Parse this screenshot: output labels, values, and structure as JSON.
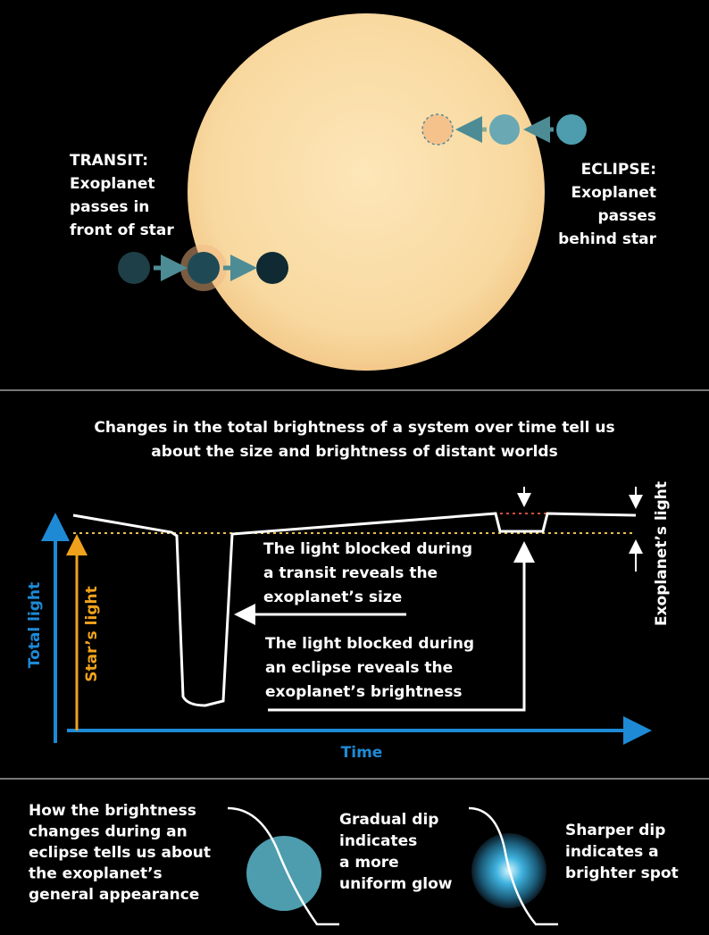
{
  "top": {
    "transit": [
      "TRANSIT:",
      "Exoplanet",
      "passes in",
      "front of star"
    ],
    "eclipse": [
      "ECLIPSE:",
      "Exoplanet",
      "passes",
      "behind star"
    ]
  },
  "middle": {
    "heading": [
      "Changes in the total brightness of a system over time tell us",
      "about the size and brightness of distant worlds"
    ],
    "transit_note": {
      "lines": [
        "The light blocked during",
        "a transit reveals the",
        "exoplanet’s "
      ],
      "emphasis": "size"
    },
    "eclipse_note": {
      "lines": [
        "The light blocked during",
        "an eclipse reveals the",
        "exoplanet’s "
      ],
      "emphasis": "brightness"
    },
    "total_light": "Total light",
    "stars_light": "Star’s light",
    "exoplanets_light": "Exoplanet’s light",
    "time": "Time"
  },
  "bottom": {
    "intro": {
      "lines": [
        "How the brightness",
        "changes during an",
        "eclipse tells us about",
        "the exoplanet’s"
      ],
      "emphasis": "general appearance"
    },
    "uniform": [
      "Gradual dip",
      "indicates",
      "a more",
      "uniform glow"
    ],
    "bright": [
      "Sharper dip",
      "indicates a",
      "brighter spot"
    ]
  }
}
